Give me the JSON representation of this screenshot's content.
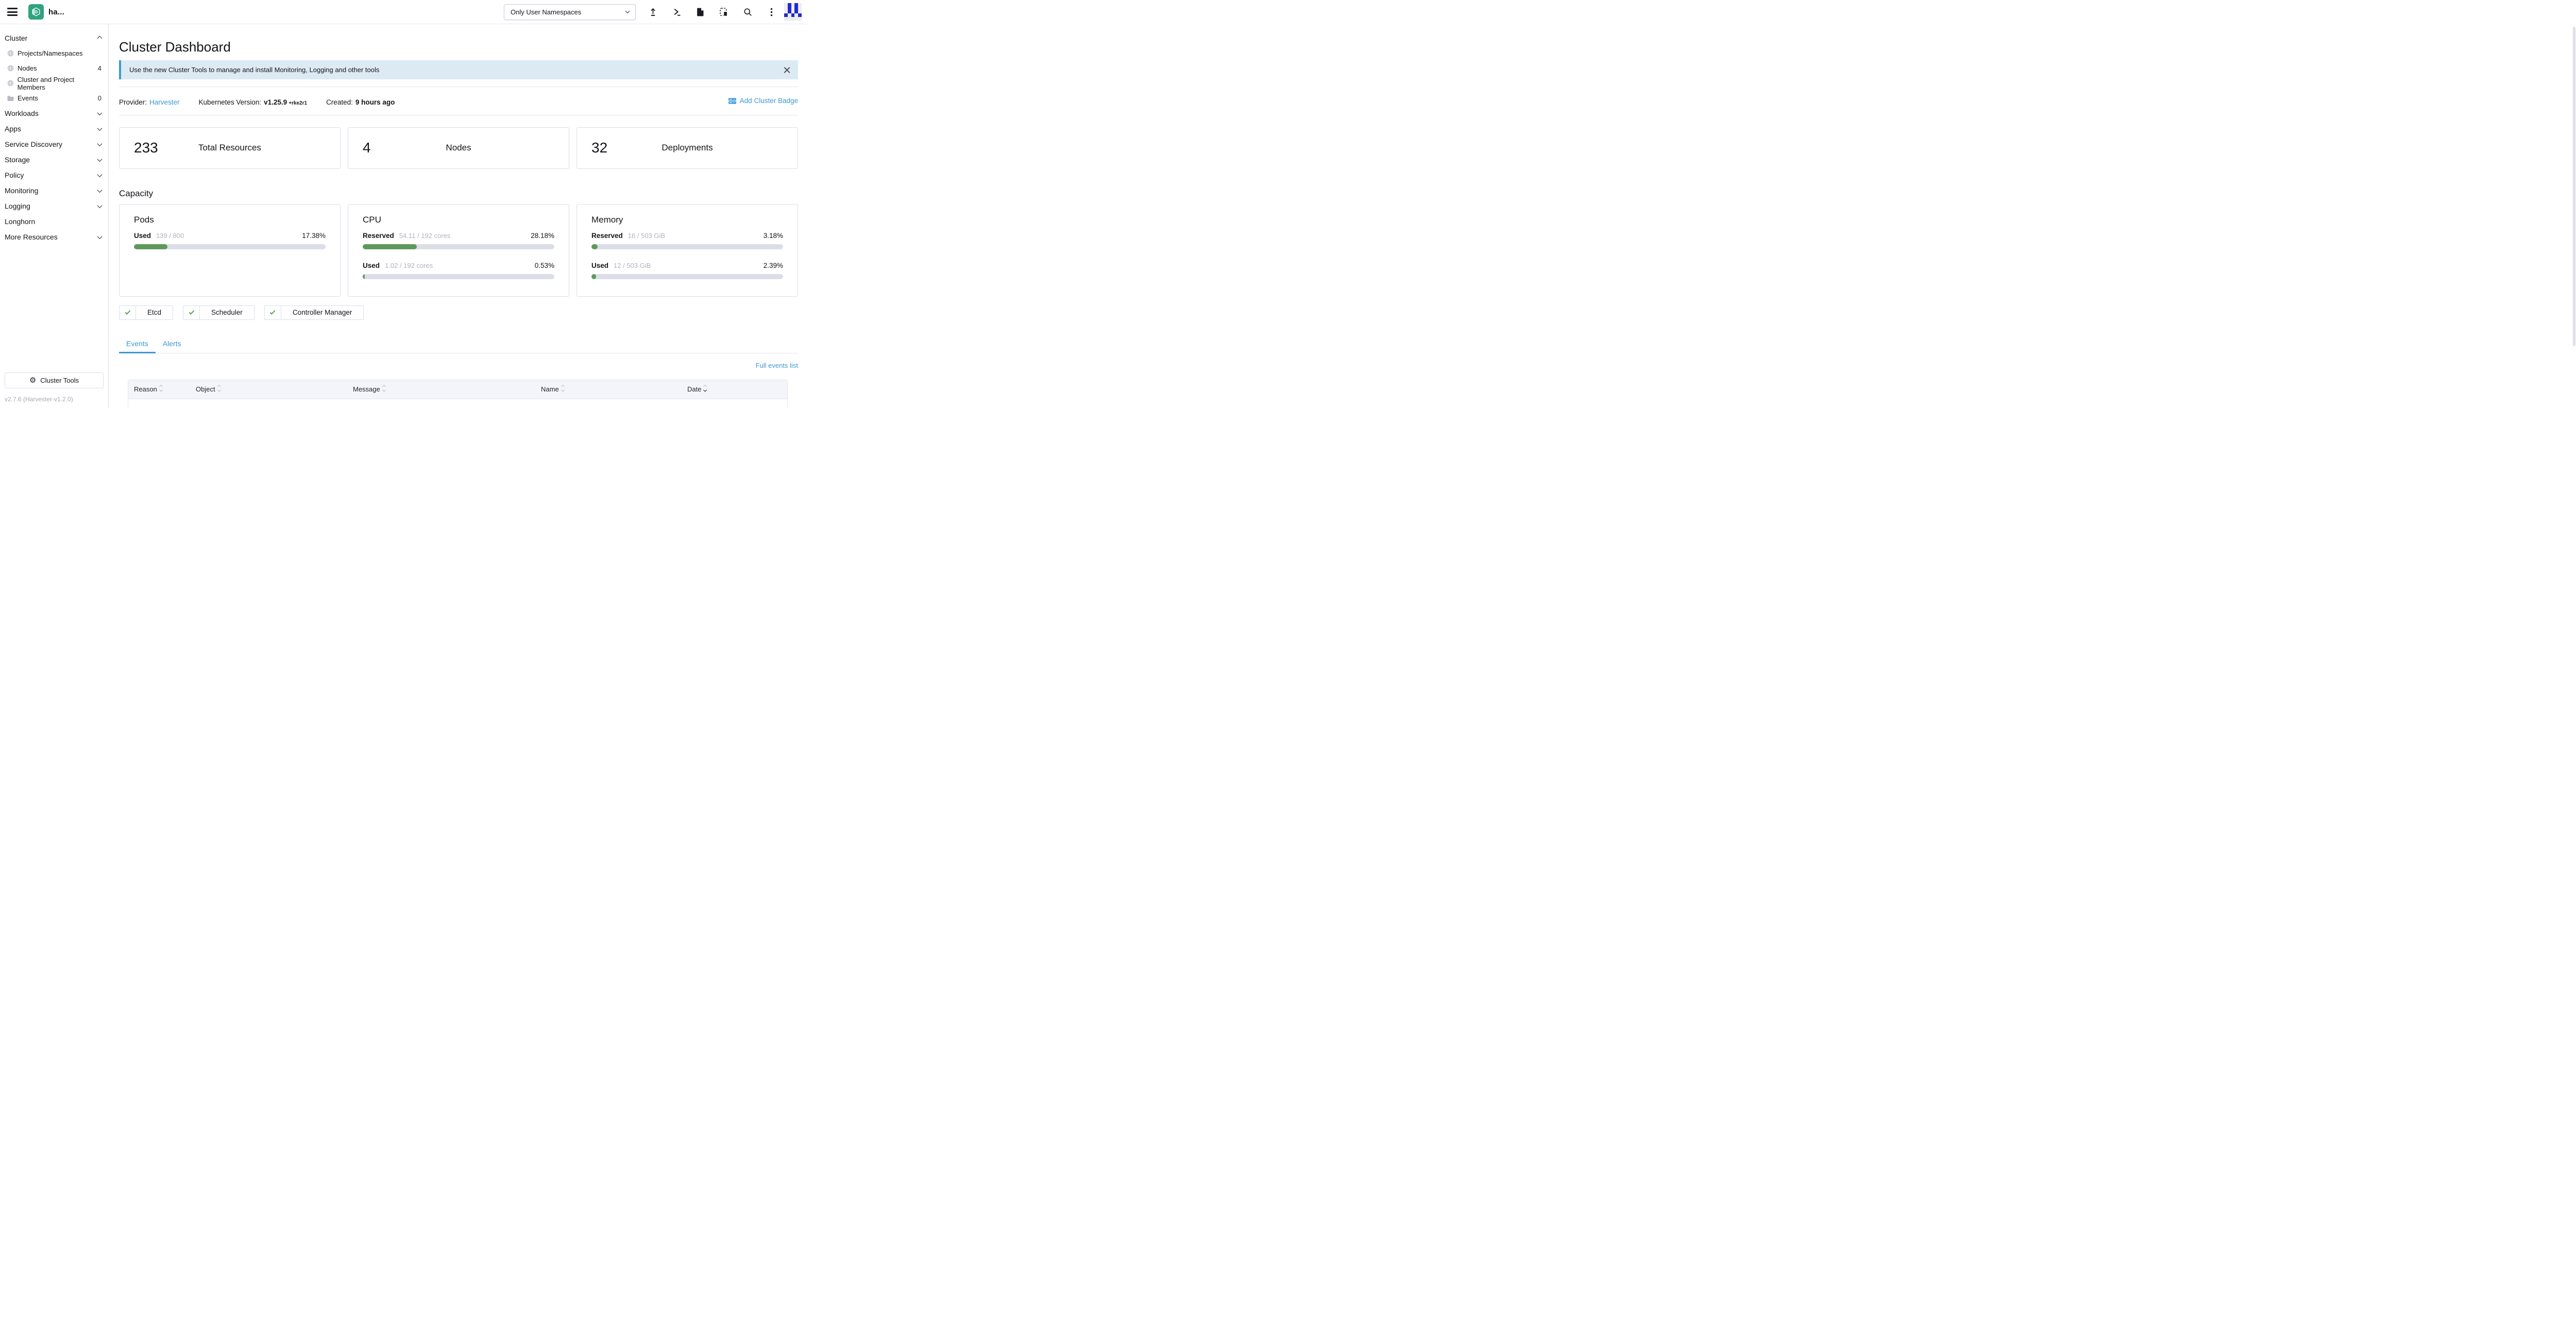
{
  "colors": {
    "primary": "#3d98d3",
    "success": "#5d995d",
    "banner_bg": "#dceaf4",
    "logo_green": "#2fa27e",
    "avatar_blue": "#2329ce",
    "text_dark": "#141419",
    "border": "#dcdee7",
    "table_header_bg": "#f4f5fa"
  },
  "header": {
    "cluster_name": "ha...",
    "namespace_filter": {
      "selected": "Only User Namespaces"
    },
    "icons": [
      "hamburger-menu",
      "import-yaml",
      "kubectl-shell",
      "download-kubeconfig",
      "copy-kubeconfig",
      "search",
      "kebab-menu",
      "avatar"
    ]
  },
  "sidebar": {
    "groups": [
      {
        "label": "Cluster",
        "expanded": true,
        "items": [
          {
            "label": "Projects/Namespaces",
            "icon": "globe",
            "count": ""
          },
          {
            "label": "Nodes",
            "icon": "globe",
            "count": "4"
          },
          {
            "label": "Cluster and Project Members",
            "icon": "globe",
            "count": ""
          },
          {
            "label": "Events",
            "icon": "folder",
            "count": "0"
          }
        ]
      },
      {
        "label": "Workloads"
      },
      {
        "label": "Apps"
      },
      {
        "label": "Service Discovery"
      },
      {
        "label": "Storage"
      },
      {
        "label": "Policy"
      },
      {
        "label": "Monitoring"
      },
      {
        "label": "Logging"
      },
      {
        "label": "Longhorn",
        "chevron": false
      },
      {
        "label": "More Resources"
      }
    ],
    "cluster_tools_label": "Cluster Tools",
    "version": "v2.7.6 (Harvester-v1.2.0)"
  },
  "main": {
    "title": "Cluster Dashboard",
    "banner": {
      "text": "Use the new Cluster Tools to manage and install Monitoring, Logging and other tools"
    },
    "glance": {
      "provider_label": "Provider:",
      "provider_value": "Harvester",
      "k8s_label": "Kubernetes Version:",
      "k8s_value": "v1.25.9",
      "k8s_suffix": "+rke2r1",
      "created_label": "Created:",
      "created_value": "9 hours ago",
      "add_badge_label": "Add Cluster Badge"
    },
    "stats": [
      {
        "value": "233",
        "label": "Total Resources"
      },
      {
        "value": "4",
        "label": "Nodes"
      },
      {
        "value": "32",
        "label": "Deployments"
      }
    ],
    "capacity": {
      "heading": "Capacity",
      "cards": [
        {
          "title": "Pods",
          "gauges": [
            {
              "label": "Used",
              "fraction": "139 / 800",
              "percent": "17.38%",
              "fill": 17.38
            }
          ]
        },
        {
          "title": "CPU",
          "gauges": [
            {
              "label": "Reserved",
              "fraction": "54.11 / 192 cores",
              "percent": "28.18%",
              "fill": 28.18
            },
            {
              "label": "Used",
              "fraction": "1.02 / 192 cores",
              "percent": "0.53%",
              "fill": 0.53
            }
          ]
        },
        {
          "title": "Memory",
          "gauges": [
            {
              "label": "Reserved",
              "fraction": "16 / 503 GiB",
              "percent": "3.18%",
              "fill": 3.18
            },
            {
              "label": "Used",
              "fraction": "12 / 503 GiB",
              "percent": "2.39%",
              "fill": 2.39
            }
          ]
        }
      ]
    },
    "components": [
      {
        "label": "Etcd",
        "status": "healthy"
      },
      {
        "label": "Scheduler",
        "status": "healthy"
      },
      {
        "label": "Controller Manager",
        "status": "healthy"
      }
    ],
    "tabs": [
      {
        "label": "Events",
        "active": true
      },
      {
        "label": "Alerts",
        "active": false
      }
    ],
    "full_events_link": "Full events list",
    "events_table": {
      "columns": [
        "Reason",
        "Object",
        "Message",
        "Name",
        "Date"
      ],
      "sorted_by": "Date"
    }
  }
}
